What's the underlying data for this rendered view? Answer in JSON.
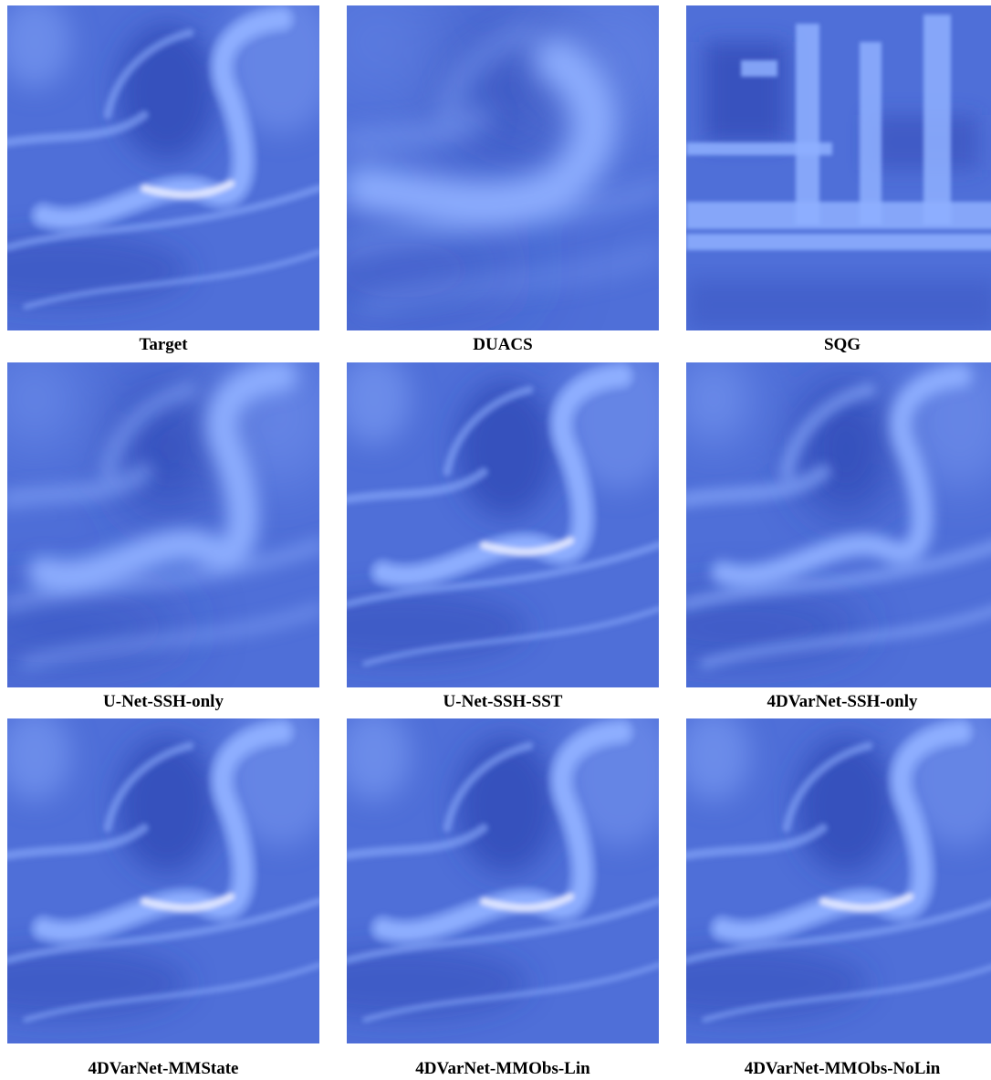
{
  "figure": {
    "panels": [
      {
        "key": "target",
        "caption": "Target",
        "style": "sharp",
        "variant": 0
      },
      {
        "key": "duacs",
        "caption": "DUACS",
        "style": "smooth",
        "variant": 1
      },
      {
        "key": "sqg",
        "caption": "SQG",
        "style": "blocky",
        "variant": 2
      },
      {
        "key": "unet1",
        "caption": "U-Net-SSH-only",
        "style": "blurry",
        "variant": 3
      },
      {
        "key": "unet2",
        "caption": "U-Net-SSH-SST",
        "style": "sharp",
        "variant": 4
      },
      {
        "key": "4dv1",
        "caption": "4DVarNet-SSH-only",
        "style": "soft",
        "variant": 5
      },
      {
        "key": "4dv2",
        "caption": "4DVarNet-MMState",
        "style": "sharp",
        "variant": 0
      },
      {
        "key": "4dv3",
        "caption": "4DVarNet-MMObs-Lin",
        "style": "sharp",
        "variant": 0
      },
      {
        "key": "4dv4",
        "caption": "4DVarNet-MMObs-NoLin",
        "style": "sharp",
        "variant": 0
      }
    ],
    "colors": {
      "base": "#4f6fd8",
      "dark": "#2f47b4",
      "light": "#8fb0ff",
      "highlight": "#e9ecff"
    }
  }
}
